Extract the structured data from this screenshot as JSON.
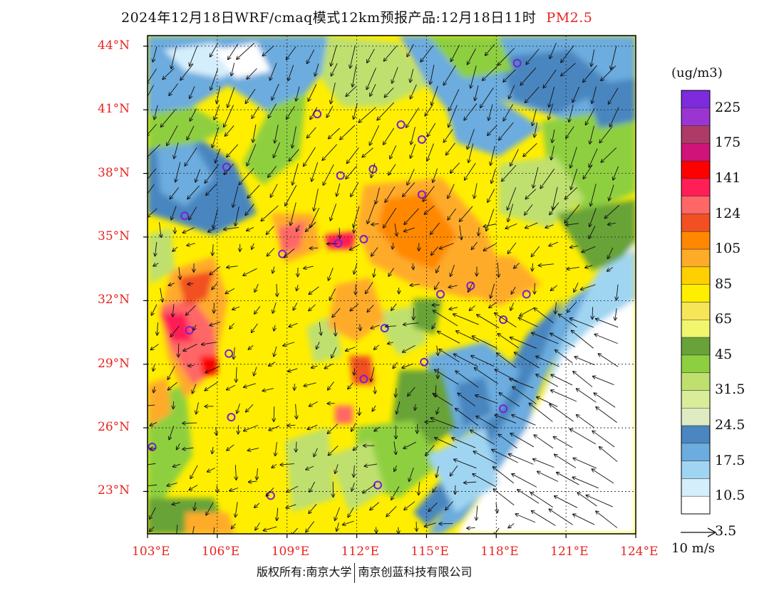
{
  "title": {
    "main": "2024年12月18日WRF/cmaq模式12km预报产品:12月18日11时",
    "pollutant": "PM2.5"
  },
  "footer": {
    "copyright": "版权所有:南京大学",
    "company": "南京创蓝科技有限公司"
  },
  "colorbar": {
    "unit": "(ug/m3)",
    "colors": [
      "#7d2bdc",
      "#9a35d3",
      "#ad3a67",
      "#cf1378",
      "#ff0000",
      "#ff1f56",
      "#ff6666",
      "#f25022",
      "#ff8800",
      "#ffab2a",
      "#ffd000",
      "#ffee00",
      "#f6e557",
      "#f1f66d",
      "#67a338",
      "#8ecf40",
      "#bfe06e",
      "#d9ed99",
      "#dfecc3",
      "#4a86bf",
      "#6cacde",
      "#a0d5f2",
      "#d5eefc",
      "#ffffff"
    ],
    "labels": [
      "225",
      "175",
      "141",
      "124",
      "105",
      "85",
      "65",
      "45",
      "31.5",
      "24.5",
      "17.5",
      "10.5",
      "3.5"
    ]
  },
  "lat_labels": [
    "44°N",
    "41°N",
    "38°N",
    "35°N",
    "32°N",
    "29°N",
    "26°N",
    "23°N"
  ],
  "lon_labels": [
    "103°E",
    "106°E",
    "109°E",
    "112°E",
    "115°E",
    "118°E",
    "121°E",
    "124°E"
  ],
  "wind_reference": "10 m/s",
  "map": {
    "lat_max": 44.5,
    "lat_min": 21.0,
    "lon_min": 103.0,
    "lon_max": 124.0,
    "cities": [
      {
        "lon": 118.9,
        "lat": 43.2
      },
      {
        "lon": 110.3,
        "lat": 40.8
      },
      {
        "lon": 113.9,
        "lat": 40.3
      },
      {
        "lon": 114.8,
        "lat": 39.6
      },
      {
        "lon": 106.4,
        "lat": 38.3
      },
      {
        "lon": 111.3,
        "lat": 37.9
      },
      {
        "lon": 112.7,
        "lat": 38.2
      },
      {
        "lon": 114.8,
        "lat": 37.0
      },
      {
        "lon": 104.6,
        "lat": 36.0
      },
      {
        "lon": 108.8,
        "lat": 34.2
      },
      {
        "lon": 111.2,
        "lat": 34.7
      },
      {
        "lon": 112.3,
        "lat": 34.9
      },
      {
        "lon": 115.6,
        "lat": 32.3
      },
      {
        "lon": 116.9,
        "lat": 32.7
      },
      {
        "lon": 119.3,
        "lat": 32.3
      },
      {
        "lon": 118.3,
        "lat": 31.1
      },
      {
        "lon": 104.8,
        "lat": 30.6
      },
      {
        "lon": 113.2,
        "lat": 30.7
      },
      {
        "lon": 106.5,
        "lat": 29.5
      },
      {
        "lon": 114.9,
        "lat": 29.1
      },
      {
        "lon": 112.3,
        "lat": 28.3
      },
      {
        "lon": 106.6,
        "lat": 26.5
      },
      {
        "lon": 118.3,
        "lat": 26.9
      },
      {
        "lon": 103.2,
        "lat": 25.1
      },
      {
        "lon": 112.9,
        "lat": 23.3
      },
      {
        "lon": 108.3,
        "lat": 22.8
      }
    ]
  }
}
